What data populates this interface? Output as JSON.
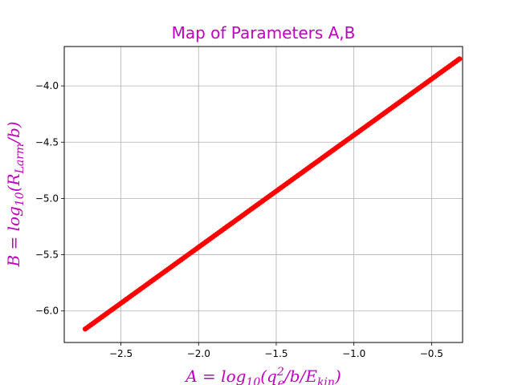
{
  "chart_data": {
    "type": "scatter",
    "title": "Map of Parameters A,B",
    "xlabel": {
      "prefix": "A = log",
      "base": "10",
      "open": "(q",
      "sup": "2",
      "sub": "e",
      "mid": "/b/E",
      "sub2": "kin",
      "close": ")"
    },
    "ylabel": {
      "prefix": "B = log",
      "base": "10",
      "open": "(R",
      "sub": "Larm",
      "close": "/b)"
    },
    "xlim": [
      -2.865,
      -0.3
    ],
    "ylim": [
      -6.28,
      -3.65
    ],
    "xticks": [
      -2.5,
      -2.0,
      -1.5,
      -1.0,
      -0.5
    ],
    "xtick_labels": [
      "−2.5",
      "−2.0",
      "−1.5",
      "−1.0",
      "−0.5"
    ],
    "yticks": [
      -6.0,
      -5.5,
      -5.0,
      -4.5,
      -4.0
    ],
    "ytick_labels": [
      "−6.0",
      "−5.5",
      "−5.0",
      "−4.5",
      "−4.0"
    ],
    "grid": true,
    "series": [
      {
        "color": "#ff0000",
        "marker": "circle",
        "x_range": [
          -2.73,
          -0.32
        ],
        "y_range": [
          -6.16,
          -3.76
        ],
        "points": 200
      }
    ]
  },
  "colors": {
    "title": "#bf00bf",
    "axis_label": "#bf00bf",
    "grid": "#b0b0b0",
    "points": "#ff0000"
  }
}
